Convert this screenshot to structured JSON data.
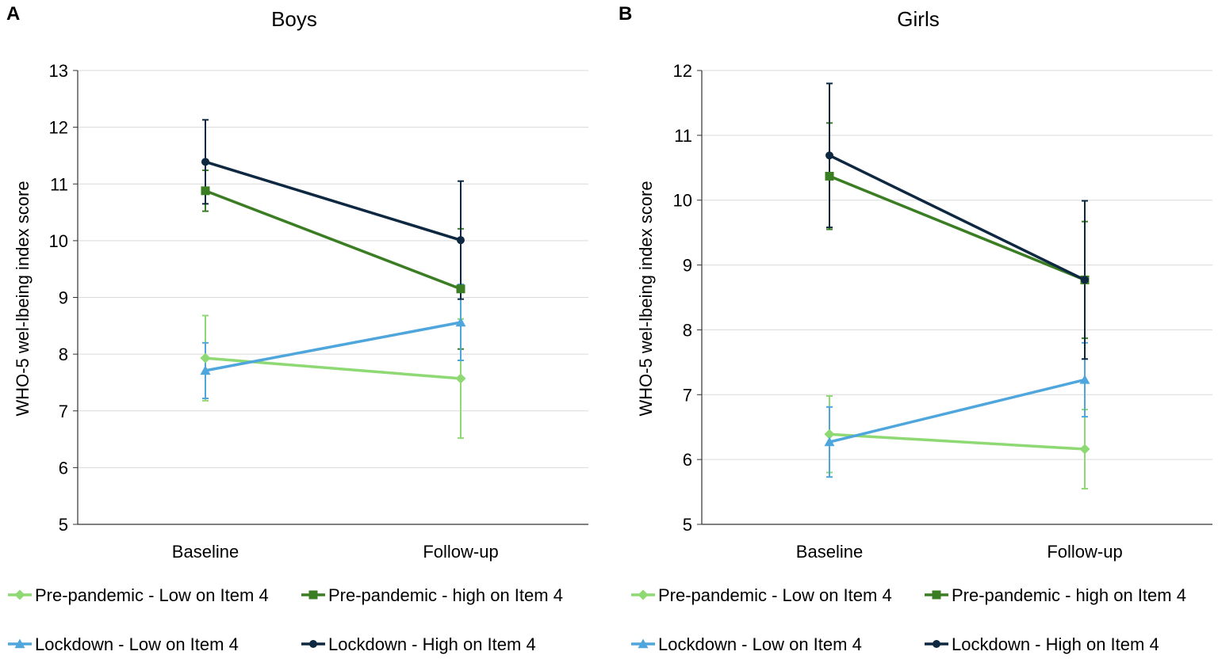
{
  "chart_data": [
    {
      "type": "line",
      "panel_label": "A",
      "title": "Boys",
      "xlabel": "",
      "ylabel": "WHO-5 wel-lbeing index score",
      "categories": [
        "Baseline",
        "Follow-up"
      ],
      "ylim": [
        5,
        13
      ],
      "yticks": [
        5,
        6,
        7,
        8,
        9,
        10,
        11,
        12,
        13
      ],
      "grid": true,
      "series": [
        {
          "name": "Pre-pandemic - Low on Item 4",
          "color": "#8ED973",
          "marker": "diamond",
          "values": [
            7.93,
            7.57
          ],
          "err_low": [
            7.18,
            6.52
          ],
          "err_high": [
            8.68,
            8.62
          ]
        },
        {
          "name": "Pre-pandemic - high on Item 4",
          "color": "#3B7D23",
          "marker": "square",
          "values": [
            10.88,
            9.15
          ],
          "err_low": [
            10.52,
            8.09
          ],
          "err_high": [
            11.24,
            10.21
          ]
        },
        {
          "name": "Lockdown - Low on Item 4",
          "color": "#4EA6DC",
          "marker": "triangle",
          "values": [
            7.71,
            8.56
          ],
          "err_low": [
            7.22,
            7.89
          ],
          "err_high": [
            8.2,
            9.23
          ]
        },
        {
          "name": "Lockdown - High on Item 4",
          "color": "#0E2841",
          "marker": "circle",
          "values": [
            11.39,
            10.01
          ],
          "err_low": [
            10.65,
            8.97
          ],
          "err_high": [
            12.13,
            11.05
          ]
        }
      ]
    },
    {
      "type": "line",
      "panel_label": "B",
      "title": "Girls",
      "xlabel": "",
      "ylabel": "WHO-5 wel-lbeing index score",
      "categories": [
        "Baseline",
        "Follow-up"
      ],
      "ylim": [
        5,
        12
      ],
      "yticks": [
        5,
        6,
        7,
        8,
        9,
        10,
        11,
        12
      ],
      "grid": true,
      "series": [
        {
          "name": "Pre-pandemic - Low on Item 4",
          "color": "#8ED973",
          "marker": "diamond",
          "values": [
            6.39,
            6.16
          ],
          "err_low": [
            5.8,
            5.55
          ],
          "err_high": [
            6.98,
            6.77
          ]
        },
        {
          "name": "Pre-pandemic - high on Item 4",
          "color": "#3B7D23",
          "marker": "square",
          "values": [
            10.37,
            8.77
          ],
          "err_low": [
            9.55,
            7.87
          ],
          "err_high": [
            11.19,
            9.67
          ]
        },
        {
          "name": "Lockdown - Low on Item 4",
          "color": "#4EA6DC",
          "marker": "triangle",
          "values": [
            6.27,
            7.23
          ],
          "err_low": [
            5.73,
            6.66
          ],
          "err_high": [
            6.81,
            7.8
          ]
        },
        {
          "name": "Lockdown - High on Item 4",
          "color": "#0E2841",
          "marker": "circle",
          "values": [
            10.69,
            8.77
          ],
          "err_low": [
            9.58,
            7.55
          ],
          "err_high": [
            11.8,
            9.99
          ]
        }
      ]
    }
  ]
}
